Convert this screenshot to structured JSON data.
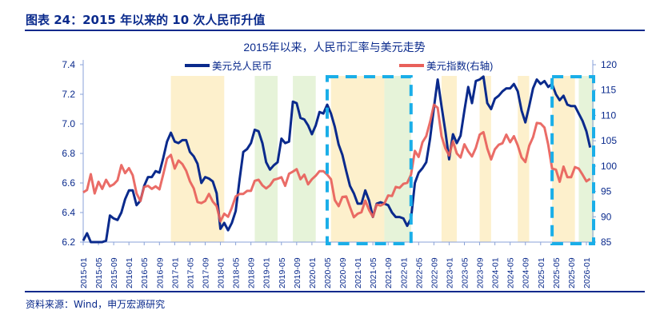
{
  "figure_title": "图表 24：2015 年以来的 10 次人民币升值",
  "source": "资料来源：Wind，申万宏源研究",
  "chart_data": {
    "type": "line",
    "title": "2015年以来，人民币汇率与美元走势",
    "start": "2015-01",
    "legend_position": "top",
    "grid": false,
    "y_left": {
      "ylim": [
        6.2,
        7.4
      ],
      "ticks": [
        "6.2",
        "6.4",
        "6.6",
        "6.8",
        "7.0",
        "7.2",
        "7.4"
      ]
    },
    "y_right": {
      "ylim": [
        85,
        120
      ],
      "ticks": [
        "85",
        "90",
        "95",
        "100",
        "105",
        "110",
        "115",
        "120"
      ]
    },
    "x_ticks": [
      "2015-01",
      "2015-05",
      "2015-09",
      "2016-01",
      "2016-05",
      "2016-09",
      "2017-01",
      "2017-05",
      "2017-09",
      "2018-01",
      "2018-05",
      "2018-09",
      "2019-01",
      "2019-05",
      "2019-09",
      "2020-01",
      "2020-05",
      "2020-09",
      "2021-01",
      "2021-05",
      "2021-09",
      "2022-01",
      "2022-05",
      "2022-09",
      "2023-01",
      "2023-05",
      "2023-09",
      "2024-01",
      "2024-05",
      "2024-09",
      "2025-01",
      "2025-05",
      "2025-09",
      "2026-01"
    ],
    "series": [
      {
        "name": "美元兑人民币",
        "axis": "left",
        "color": "#0a2a8c",
        "values": [
          6.21,
          6.26,
          6.2,
          6.2,
          6.2,
          6.2,
          6.21,
          6.38,
          6.36,
          6.35,
          6.4,
          6.49,
          6.55,
          6.55,
          6.45,
          6.48,
          6.58,
          6.64,
          6.64,
          6.68,
          6.67,
          6.77,
          6.88,
          6.94,
          6.88,
          6.87,
          6.89,
          6.89,
          6.81,
          6.78,
          6.73,
          6.6,
          6.64,
          6.63,
          6.61,
          6.53,
          6.29,
          6.33,
          6.28,
          6.33,
          6.41,
          6.62,
          6.81,
          6.83,
          6.87,
          6.96,
          6.95,
          6.87,
          6.74,
          6.69,
          6.72,
          6.74,
          6.9,
          6.87,
          6.88,
          7.15,
          7.14,
          7.04,
          7.03,
          6.99,
          6.93,
          6.99,
          7.08,
          7.07,
          7.13,
          7.07,
          6.98,
          6.86,
          6.79,
          6.68,
          6.58,
          6.53,
          6.46,
          6.46,
          6.55,
          6.48,
          6.37,
          6.46,
          6.47,
          6.46,
          6.45,
          6.4,
          6.37,
          6.37,
          6.36,
          6.31,
          6.36,
          6.6,
          6.67,
          6.7,
          6.74,
          6.9,
          7.11,
          7.3,
          7.12,
          6.95,
          6.76,
          6.93,
          6.87,
          6.92,
          7.09,
          7.25,
          7.14,
          7.29,
          7.3,
          7.32,
          7.14,
          7.1,
          7.17,
          7.19,
          7.22,
          7.24,
          7.24,
          7.27,
          7.22,
          7.09,
          7.01,
          7.12,
          7.24,
          7.3,
          7.27,
          7.29,
          7.25,
          7.27,
          7.2,
          7.16,
          7.19,
          7.13,
          7.12,
          7.12,
          7.07,
          7.02,
          6.95,
          6.84
        ]
      },
      {
        "name": "美元指数(右轴)",
        "axis": "right",
        "color": "#e8605a",
        "values": [
          94.8,
          95.3,
          98.4,
          94.6,
          96.9,
          95.5,
          97.3,
          96.0,
          96.4,
          97.2,
          100.2,
          98.6,
          99.6,
          98.2,
          94.6,
          93.1,
          95.9,
          96.1,
          95.5,
          96.0,
          95.4,
          98.4,
          101.5,
          102.2,
          99.5,
          101.1,
          100.4,
          99.1,
          97.0,
          95.6,
          92.9,
          92.7,
          93.1,
          94.5,
          93.0,
          92.1,
          89.1,
          90.6,
          90.0,
          91.8,
          94.0,
          94.5,
          94.5,
          95.1,
          95.1,
          97.1,
          97.3,
          96.2,
          95.6,
          96.2,
          97.3,
          97.5,
          97.8,
          96.1,
          98.5,
          98.9,
          99.4,
          97.4,
          98.3,
          96.4,
          97.4,
          98.1,
          99.0,
          99.0,
          98.3,
          97.4,
          93.3,
          92.1,
          93.9,
          94.0,
          91.9,
          89.9,
          90.6,
          90.9,
          93.2,
          91.3,
          90.0,
          92.4,
          92.2,
          92.6,
          94.2,
          94.1,
          95.9,
          95.7,
          96.5,
          96.7,
          98.3,
          103.0,
          101.8,
          104.7,
          105.9,
          108.7,
          112.1,
          111.5,
          105.9,
          103.5,
          102.1,
          104.9,
          102.5,
          101.7,
          104.3,
          102.9,
          101.9,
          103.6,
          106.2,
          106.7,
          103.5,
          101.3,
          103.3,
          104.2,
          104.5,
          106.2,
          104.7,
          105.9,
          104.1,
          101.7,
          100.8,
          104.0,
          105.7,
          108.5,
          108.4,
          107.6,
          104.2,
          99.5,
          99.3,
          96.9,
          99.9,
          97.8,
          97.8,
          99.8,
          99.5,
          98.3,
          97.0,
          97.5
        ]
      }
    ],
    "shaded_periods": [
      {
        "from": "2016-12",
        "to": "2018-01",
        "color": "#fdf0cc"
      },
      {
        "from": "2018-10",
        "to": "2019-03",
        "color": "#e6f3d9"
      },
      {
        "from": "2019-08",
        "to": "2020-01",
        "color": "#e6f3d9"
      },
      {
        "from": "2020-06",
        "to": "2021-07",
        "color": "#fdf0cc"
      },
      {
        "from": "2021-08",
        "to": "2022-02",
        "color": "#e6f3d9"
      },
      {
        "from": "2022-11",
        "to": "2023-02",
        "color": "#fdf0cc"
      },
      {
        "from": "2023-09",
        "to": "2023-11",
        "color": "#fdf0cc"
      },
      {
        "from": "2024-07",
        "to": "2024-09",
        "color": "#fdf0cc"
      },
      {
        "from": "2025-04",
        "to": "2025-09",
        "color": "#fdf0cc"
      },
      {
        "from": "2025-11",
        "to": "2026-02",
        "color": "#e6f3d9"
      }
    ],
    "highlight_boxes": [
      {
        "from": "2020-05",
        "to": "2022-02",
        "color": "#1aaee8"
      },
      {
        "from": "2025-04",
        "to": "2026-02",
        "color": "#1aaee8"
      }
    ]
  }
}
